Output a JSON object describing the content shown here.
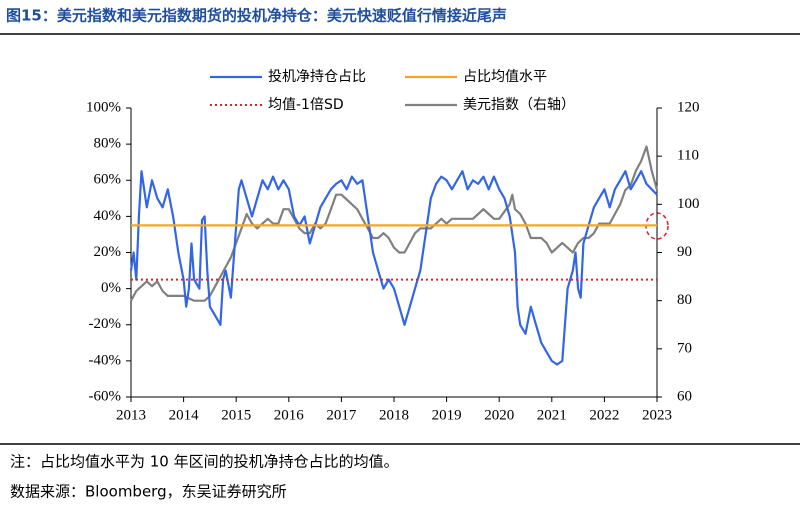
{
  "chart_data": {
    "type": "line",
    "title": "图15：美元指数和美元指数期货的投机净持仓：美元快速贬值行情接近尾声",
    "note": "注：占比均值水平为 10 年区间的投机净持仓占比的均值。",
    "source": "数据来源：Bloomberg，东吴证券研究所",
    "legend": "top",
    "xlim": [
      2013,
      2023
    ],
    "xticks": [
      2013,
      2014,
      2015,
      2016,
      2017,
      2018,
      2019,
      2020,
      2021,
      2022,
      2023
    ],
    "ylim": [
      -60,
      100
    ],
    "yticks": [
      {
        "value": -60,
        "label": "-60%"
      },
      {
        "value": -40,
        "label": "-40%"
      },
      {
        "value": -20,
        "label": "-20%"
      },
      {
        "value": 0,
        "label": "0%"
      },
      {
        "value": 20,
        "label": "20%"
      },
      {
        "value": 40,
        "label": "40%"
      },
      {
        "value": 60,
        "label": "60%"
      },
      {
        "value": 80,
        "label": "80%"
      },
      {
        "value": 100,
        "label": "100%"
      }
    ],
    "y2lim": [
      60,
      120
    ],
    "y2ticks": [
      60,
      70,
      80,
      90,
      100,
      110,
      120
    ],
    "series": [
      {
        "name": "投机净持仓占比",
        "color": "#3366e6",
        "style": "solid",
        "width": 2.2,
        "x": [
          2013.0,
          2013.05,
          2013.1,
          2013.15,
          2013.2,
          2013.3,
          2013.4,
          2013.5,
          2013.6,
          2013.7,
          2013.8,
          2013.9,
          2014.0,
          2014.05,
          2014.1,
          2014.15,
          2014.2,
          2014.3,
          2014.35,
          2014.4,
          2014.45,
          2014.5,
          2014.6,
          2014.7,
          2014.75,
          2014.8,
          2014.9,
          2015.0,
          2015.05,
          2015.1,
          2015.2,
          2015.3,
          2015.4,
          2015.5,
          2015.6,
          2015.7,
          2015.8,
          2015.9,
          2016.0,
          2016.1,
          2016.2,
          2016.3,
          2016.4,
          2016.5,
          2016.6,
          2016.7,
          2016.8,
          2016.9,
          2017.0,
          2017.1,
          2017.2,
          2017.3,
          2017.4,
          2017.5,
          2017.6,
          2017.7,
          2017.8,
          2017.9,
          2018.0,
          2018.1,
          2018.2,
          2018.3,
          2018.4,
          2018.5,
          2018.6,
          2018.7,
          2018.8,
          2018.9,
          2019.0,
          2019.1,
          2019.2,
          2019.3,
          2019.4,
          2019.5,
          2019.6,
          2019.7,
          2019.8,
          2019.9,
          2020.0,
          2020.1,
          2020.2,
          2020.3,
          2020.35,
          2020.4,
          2020.5,
          2020.6,
          2020.7,
          2020.8,
          2020.9,
          2021.0,
          2021.1,
          2021.2,
          2021.3,
          2021.4,
          2021.45,
          2021.5,
          2021.55,
          2021.6,
          2021.7,
          2021.8,
          2021.9,
          2022.0,
          2022.1,
          2022.2,
          2022.3,
          2022.4,
          2022.5,
          2022.6,
          2022.7,
          2022.8,
          2022.9,
          2023.0
        ],
        "values": [
          10,
          20,
          5,
          40,
          65,
          45,
          60,
          50,
          45,
          55,
          40,
          20,
          5,
          -10,
          0,
          25,
          5,
          0,
          38,
          40,
          10,
          -10,
          -15,
          -20,
          5,
          10,
          -5,
          35,
          55,
          60,
          50,
          40,
          50,
          60,
          55,
          62,
          55,
          60,
          55,
          40,
          35,
          40,
          25,
          35,
          45,
          50,
          55,
          58,
          60,
          55,
          62,
          58,
          60,
          40,
          20,
          10,
          0,
          5,
          0,
          -10,
          -20,
          -10,
          0,
          10,
          30,
          50,
          58,
          62,
          60,
          55,
          60,
          65,
          55,
          60,
          58,
          62,
          55,
          62,
          55,
          50,
          40,
          20,
          -10,
          -20,
          -25,
          -10,
          -20,
          -30,
          -35,
          -40,
          -42,
          -40,
          0,
          10,
          20,
          0,
          -5,
          25,
          35,
          45,
          50,
          55,
          45,
          55,
          60,
          65,
          55,
          60,
          65,
          58,
          55,
          52
        ]
      },
      {
        "name": "占比均值水平",
        "color": "#f5a623",
        "style": "solid",
        "width": 2.2,
        "x": [
          2013,
          2023
        ],
        "values": [
          35,
          35
        ]
      },
      {
        "name": "均值-1倍SD",
        "color": "#e0202a",
        "style": "dotted",
        "width": 2,
        "x": [
          2013,
          2023
        ],
        "values": [
          5,
          5
        ]
      },
      {
        "name": "美元指数（右轴）",
        "color": "#808080",
        "style": "solid",
        "width": 2.2,
        "axis": "y2",
        "x": [
          2013.0,
          2013.1,
          2013.2,
          2013.3,
          2013.4,
          2013.5,
          2013.6,
          2013.7,
          2013.8,
          2013.9,
          2014.0,
          2014.2,
          2014.4,
          2014.5,
          2014.6,
          2014.7,
          2014.8,
          2014.9,
          2015.0,
          2015.1,
          2015.2,
          2015.3,
          2015.4,
          2015.5,
          2015.6,
          2015.7,
          2015.8,
          2015.9,
          2016.0,
          2016.1,
          2016.2,
          2016.3,
          2016.4,
          2016.5,
          2016.6,
          2016.7,
          2016.8,
          2016.9,
          2017.0,
          2017.1,
          2017.2,
          2017.3,
          2017.4,
          2017.5,
          2017.6,
          2017.7,
          2017.8,
          2017.9,
          2018.0,
          2018.1,
          2018.2,
          2018.3,
          2018.4,
          2018.5,
          2018.6,
          2018.7,
          2018.8,
          2018.9,
          2019.0,
          2019.1,
          2019.2,
          2019.3,
          2019.4,
          2019.5,
          2019.6,
          2019.7,
          2019.8,
          2019.9,
          2020.0,
          2020.2,
          2020.25,
          2020.3,
          2020.4,
          2020.5,
          2020.6,
          2020.7,
          2020.8,
          2020.9,
          2021.0,
          2021.1,
          2021.2,
          2021.3,
          2021.4,
          2021.5,
          2021.6,
          2021.7,
          2021.8,
          2021.9,
          2022.0,
          2022.1,
          2022.2,
          2022.3,
          2022.4,
          2022.5,
          2022.6,
          2022.7,
          2022.8,
          2022.9,
          2023.0
        ],
        "values": [
          80,
          82,
          83,
          84,
          83,
          84,
          82,
          81,
          81,
          81,
          81,
          80,
          80,
          81,
          83,
          85,
          87,
          89,
          92,
          95,
          98,
          96,
          95,
          96,
          97,
          96,
          96,
          99,
          99,
          97,
          95,
          94,
          94,
          96,
          95,
          96,
          99,
          102,
          102,
          101,
          100,
          99,
          97,
          95,
          93,
          93,
          94,
          93,
          91,
          90,
          90,
          92,
          94,
          95,
          95,
          95,
          96,
          97,
          96,
          97,
          97,
          97,
          97,
          97,
          98,
          99,
          98,
          97,
          97,
          100,
          102,
          99,
          98,
          96,
          93,
          93,
          93,
          92,
          90,
          91,
          92,
          91,
          90,
          92,
          93,
          93,
          94,
          96,
          96,
          96,
          98,
          100,
          103,
          104,
          107,
          109,
          112,
          107,
          103
        ]
      }
    ]
  }
}
